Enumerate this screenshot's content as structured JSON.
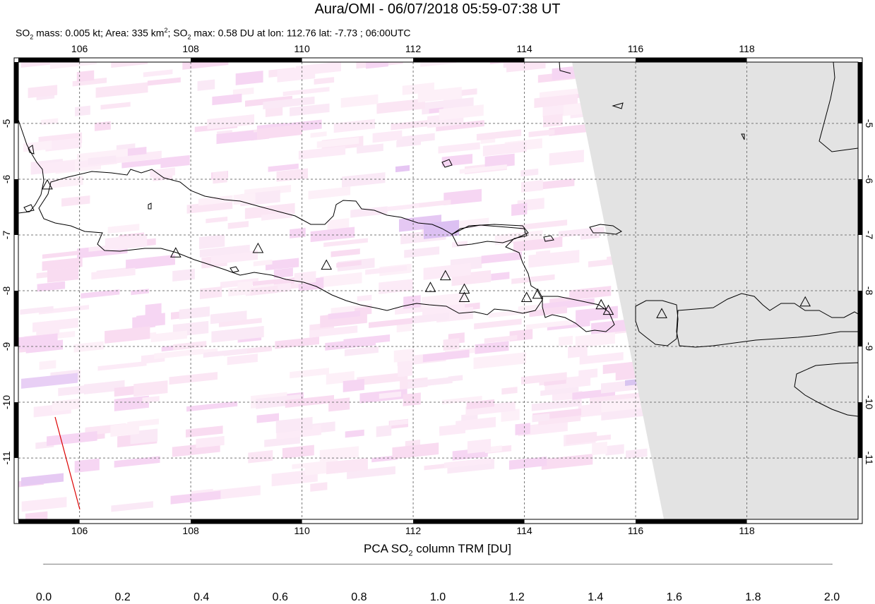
{
  "header": {
    "title": "Aura/OMI - 06/07/2018 05:59-07:38 UT",
    "subtitle_parts": {
      "so2_a": "SO",
      "so2_a_sub": "2",
      "mass_text": " mass: 0.005 kt; Area: 335 km",
      "area_sup": "2",
      "sep": "; ",
      "so2_b": "SO",
      "so2_b_sub": "2",
      "max_text": " max: 0.58 DU at lon: 112.76 lat: -7.73 ; 06:00UTC"
    }
  },
  "map": {
    "lon_range": [
      104.9,
      120.0
    ],
    "lat_range": [
      -12.1,
      -3.9
    ],
    "lon_ticks": [
      106,
      108,
      110,
      112,
      114,
      116,
      118
    ],
    "lat_ticks": [
      -5,
      -6,
      -7,
      -8,
      -9,
      -10,
      -11
    ],
    "no_data_color": "#e3e3e3",
    "volcanoes": [
      {
        "lon": 105.42,
        "lat": -6.1
      },
      {
        "lon": 107.73,
        "lat": -7.32
      },
      {
        "lon": 109.21,
        "lat": -7.24
      },
      {
        "lon": 110.44,
        "lat": -7.54
      },
      {
        "lon": 112.31,
        "lat": -7.94
      },
      {
        "lon": 112.58,
        "lat": -7.73
      },
      {
        "lon": 112.92,
        "lat": -7.97
      },
      {
        "lon": 112.92,
        "lat": -8.12
      },
      {
        "lon": 114.04,
        "lat": -8.12
      },
      {
        "lon": 114.24,
        "lat": -8.06
      },
      {
        "lon": 115.38,
        "lat": -8.25
      },
      {
        "lon": 115.51,
        "lat": -8.35
      },
      {
        "lon": 116.47,
        "lat": -8.41
      },
      {
        "lon": 119.05,
        "lat": -8.2
      }
    ]
  },
  "colorbar": {
    "title_a": "PCA SO",
    "title_sub": "2",
    "title_b": " column TRM [DU]",
    "ticks": [
      "0.0",
      "0.2",
      "0.4",
      "0.6",
      "0.8",
      "1.0",
      "1.2",
      "1.4",
      "1.6",
      "1.8",
      "2.0"
    ],
    "colors": [
      "#ffffff",
      "#fbe0f2",
      "#f5b8f5",
      "#b9a5f2",
      "#8a9ff0",
      "#6ee0f5",
      "#66f0b0",
      "#72f065",
      "#e4f534",
      "#f5a722",
      "#f52e1a"
    ]
  }
}
